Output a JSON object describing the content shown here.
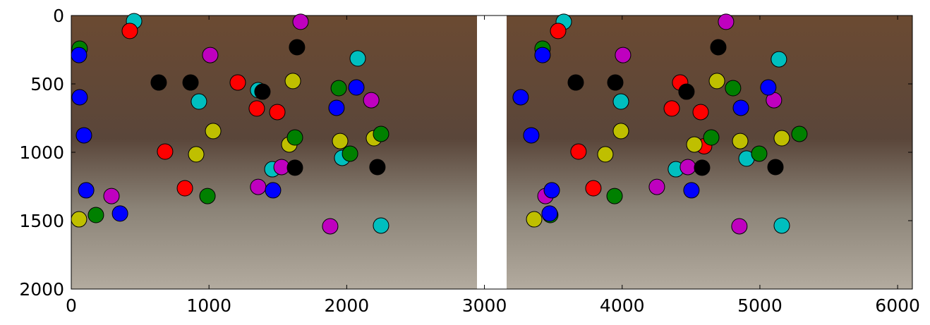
{
  "chart_data": {
    "type": "scatter",
    "xlim": [
      0,
      6107
    ],
    "ylim": [
      2000,
      0
    ],
    "xticks": [
      0,
      1000,
      2000,
      3000,
      4000,
      5000,
      6000
    ],
    "yticks": [
      0,
      500,
      1000,
      1500,
      2000
    ],
    "series": [
      {
        "color": "#00bfbf",
        "x": [
          456,
          2080,
          927,
          1357,
          1460,
          1967,
          2249,
          3576,
          5138,
          3991,
          4390,
          4903,
          5159
        ],
        "values": [
          41,
          314,
          629,
          546,
          1124,
          1041,
          1536,
          46,
          320,
          629,
          1124,
          1046,
          1536
        ]
      },
      {
        "color": "#ff0000",
        "x": [
          425,
          1209,
          1347,
          1496,
          681,
          825,
          3535,
          4421,
          4360,
          4570,
          4595,
          3683,
          3791
        ],
        "values": [
          113,
          490,
          680,
          706,
          995,
          1263,
          113,
          490,
          680,
          706,
          956,
          995,
          1263
        ]
      },
      {
        "color": "#bf00bf",
        "x": [
          1665,
          1009,
          2178,
          1527,
          1357,
          292,
          1880,
          4754,
          4006,
          5102,
          4477,
          4252,
          3443,
          4851
        ],
        "values": [
          46,
          289,
          619,
          1108,
          1253,
          1320,
          1541,
          46,
          289,
          619,
          1108,
          1253,
          1320,
          1541
        ]
      },
      {
        "color": "#000000",
        "x": [
          1639,
          635,
          866,
          1388,
          1624,
          2223,
          4698,
          3663,
          3950,
          4467,
          4580,
          5113
        ],
        "values": [
          232,
          490,
          490,
          557,
          1113,
          1108,
          232,
          490,
          490,
          557,
          1113,
          1108
        ]
      },
      {
        "color": "#bfbf00",
        "x": [
          1609,
          1030,
          907,
          1583,
          1952,
          2198,
          56,
          4688,
          3991,
          3878,
          4524,
          4857,
          5159,
          3361
        ],
        "values": [
          479,
          845,
          1015,
          943,
          918,
          897,
          1490,
          479,
          845,
          1015,
          943,
          918,
          897,
          1490
        ]
      },
      {
        "color": "#008000",
        "x": [
          61,
          1942,
          2249,
          1624,
          2024,
          989,
          179,
          3422,
          4805,
          5287,
          4647,
          4995,
          3945,
          3478
        ],
        "values": [
          242,
          531,
          866,
          892,
          1010,
          1320,
          1459,
          242,
          531,
          866,
          892,
          1010,
          1320,
          1459
        ]
      },
      {
        "color": "#0000ff",
        "x": [
          56,
          61,
          92,
          2070,
          1926,
          1465,
          108,
          354,
          3422,
          3263,
          3340,
          5061,
          4862,
          4503,
          3489,
          3473
        ],
        "values": [
          289,
          598,
          876,
          526,
          675,
          1278,
          1278,
          1448,
          289,
          598,
          876,
          526,
          675,
          1278,
          1278,
          1448
        ]
      }
    ]
  }
}
